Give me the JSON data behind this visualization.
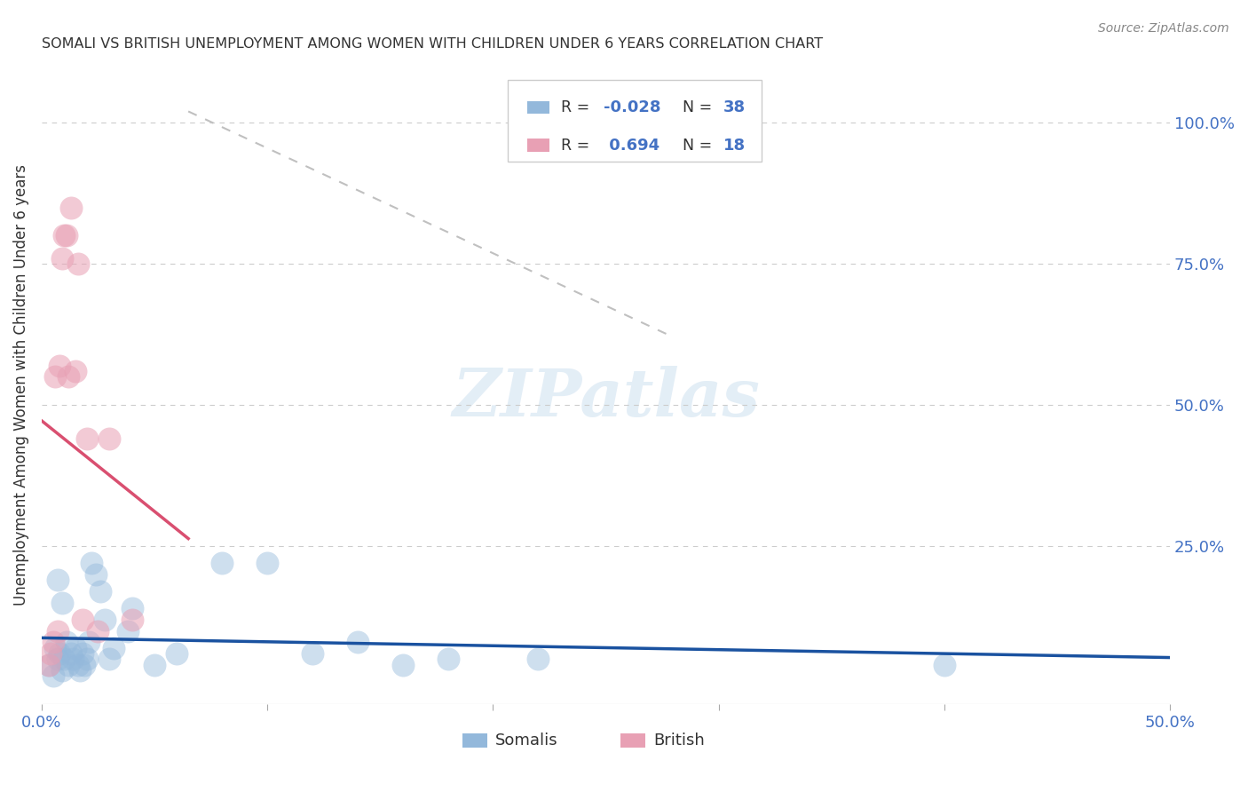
{
  "title": "SOMALI VS BRITISH UNEMPLOYMENT AMONG WOMEN WITH CHILDREN UNDER 6 YEARS CORRELATION CHART",
  "source": "Source: ZipAtlas.com",
  "ylabel": "Unemployment Among Women with Children Under 6 years",
  "xlim": [
    0.0,
    0.5
  ],
  "ylim": [
    -0.03,
    1.1
  ],
  "watermark": "ZIPatlas",
  "somali_color": "#93b8db",
  "somali_edge": "#93b8db",
  "british_color": "#e8a0b4",
  "british_edge": "#e8a0b4",
  "somali_line_color": "#1a52a0",
  "british_line_color": "#d94f70",
  "dashed_line_color": "#cccccc",
  "grid_color": "#cccccc",
  "title_color": "#333333",
  "tick_color": "#4472c4",
  "background_color": "#ffffff",
  "somali_x": [
    0.003,
    0.005,
    0.006,
    0.007,
    0.008,
    0.009,
    0.01,
    0.011,
    0.012,
    0.013,
    0.014,
    0.015,
    0.016,
    0.017,
    0.018,
    0.019,
    0.02,
    0.021,
    0.022,
    0.024,
    0.026,
    0.028,
    0.03,
    0.032,
    0.038,
    0.04,
    0.05,
    0.06,
    0.08,
    0.1,
    0.12,
    0.14,
    0.16,
    0.18,
    0.22,
    0.4,
    0.007,
    0.009
  ],
  "somali_y": [
    0.04,
    0.02,
    0.07,
    0.05,
    0.06,
    0.03,
    0.05,
    0.08,
    0.04,
    0.06,
    0.05,
    0.07,
    0.04,
    0.03,
    0.06,
    0.04,
    0.05,
    0.08,
    0.22,
    0.2,
    0.17,
    0.12,
    0.05,
    0.07,
    0.1,
    0.14,
    0.04,
    0.06,
    0.22,
    0.22,
    0.06,
    0.08,
    0.04,
    0.05,
    0.05,
    0.04,
    0.19,
    0.15
  ],
  "british_x": [
    0.003,
    0.004,
    0.005,
    0.006,
    0.007,
    0.008,
    0.009,
    0.01,
    0.011,
    0.012,
    0.013,
    0.015,
    0.016,
    0.018,
    0.02,
    0.025,
    0.03,
    0.04
  ],
  "british_y": [
    0.04,
    0.06,
    0.08,
    0.55,
    0.08,
    0.57,
    0.76,
    0.8,
    0.8,
    0.45,
    0.85,
    0.56,
    0.75,
    0.12,
    0.44,
    0.1,
    0.44,
    0.12
  ]
}
